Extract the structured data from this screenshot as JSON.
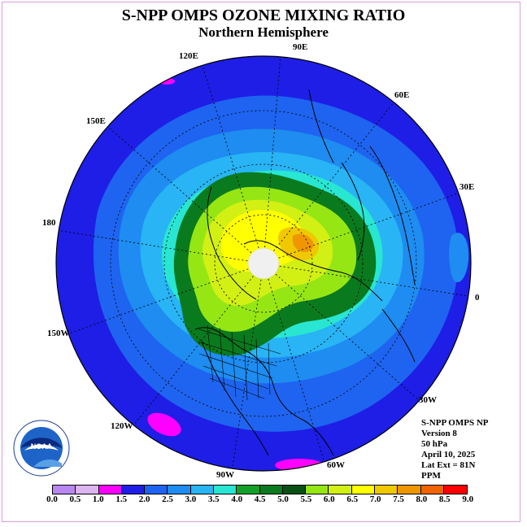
{
  "title": "S-NPP OMPS OZONE MIXING RATIO",
  "subtitle": "Northern Hemisphere",
  "lon_labels": {
    "l90e": "90E",
    "l60e": "60E",
    "l30e": "30E",
    "l0": "0",
    "l30w": "30W",
    "l60w": "60W",
    "l90w": "90W",
    "l120w": "120W",
    "l150w": "150W",
    "l180": "180",
    "l150e": "150E",
    "l120e": "120E"
  },
  "info": {
    "line1": "S-NPP OMPS NP",
    "line2": "Version 8",
    "line3": "50 hPa",
    "line4": "April 10, 2025",
    "line5": "Lat Ext = 81N",
    "line6": "PPM"
  },
  "logo_text": "NOAA",
  "colorbar": {
    "ticks": [
      "0.0",
      "0.5",
      "1.0",
      "1.5",
      "2.0",
      "2.5",
      "3.0",
      "3.5",
      "4.0",
      "4.5",
      "5.0",
      "5.5",
      "6.0",
      "6.5",
      "7.0",
      "7.5",
      "8.0",
      "8.5",
      "9.0"
    ],
    "colors": [
      "#b987f0",
      "#dcb4f0",
      "#ff00ff",
      "#1e1ee6",
      "#1e64f0",
      "#1e8cf0",
      "#28b4f5",
      "#28e6d2",
      "#14a028",
      "#0a7a1e",
      "#0a5014",
      "#96e614",
      "#d2f014",
      "#ffff00",
      "#f0c800",
      "#f09600",
      "#f06400",
      "#ff0000",
      "#8c5a3c"
    ]
  }
}
